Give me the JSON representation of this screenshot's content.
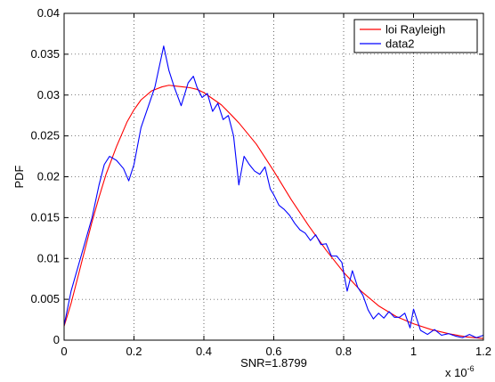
{
  "chart_data": {
    "type": "line",
    "title": "",
    "xlabel": "SNR=1.8799",
    "ylabel": "PDF",
    "x_exponent_label": "x 10",
    "x_exponent_power": "-6",
    "xlim": [
      0,
      1.2
    ],
    "ylim": [
      0,
      0.04
    ],
    "xticks": [
      "0",
      "0.2",
      "0.4",
      "0.6",
      "0.8",
      "1",
      "1.2"
    ],
    "yticks": [
      "0",
      "0.005",
      "0.01",
      "0.015",
      "0.02",
      "0.025",
      "0.03",
      "0.035",
      "0.04"
    ],
    "grid": true,
    "legend_position": "top-right",
    "series": [
      {
        "name": "loi Rayleigh",
        "color": "#ff0000",
        "x": [
          0.0,
          0.02,
          0.05,
          0.08,
          0.1,
          0.12,
          0.15,
          0.18,
          0.2,
          0.22,
          0.25,
          0.28,
          0.3,
          0.32,
          0.34,
          0.36,
          0.38,
          0.4,
          0.42,
          0.45,
          0.48,
          0.5,
          0.55,
          0.6,
          0.65,
          0.7,
          0.75,
          0.8,
          0.85,
          0.9,
          0.95,
          1.0,
          1.05,
          1.1,
          1.15,
          1.2
        ],
        "values": [
          0.0017,
          0.0045,
          0.0095,
          0.0145,
          0.0175,
          0.0203,
          0.0237,
          0.0267,
          0.0282,
          0.0294,
          0.0305,
          0.031,
          0.0312,
          0.0311,
          0.031,
          0.0309,
          0.0307,
          0.0303,
          0.0297,
          0.0288,
          0.0275,
          0.0266,
          0.024,
          0.0207,
          0.0172,
          0.014,
          0.011,
          0.0083,
          0.006,
          0.0042,
          0.0029,
          0.002,
          0.0013,
          0.0008,
          0.0004,
          0.0002
        ]
      },
      {
        "name": "data2",
        "color": "#0000ff",
        "x": [
          0.0,
          0.02,
          0.05,
          0.08,
          0.1,
          0.115,
          0.13,
          0.15,
          0.17,
          0.185,
          0.2,
          0.22,
          0.24,
          0.26,
          0.285,
          0.3,
          0.315,
          0.335,
          0.355,
          0.37,
          0.38,
          0.395,
          0.41,
          0.425,
          0.44,
          0.455,
          0.47,
          0.485,
          0.5,
          0.515,
          0.53,
          0.545,
          0.56,
          0.575,
          0.59,
          0.6,
          0.615,
          0.63,
          0.645,
          0.66,
          0.675,
          0.69,
          0.705,
          0.72,
          0.735,
          0.75,
          0.765,
          0.78,
          0.795,
          0.81,
          0.825,
          0.84,
          0.855,
          0.87,
          0.885,
          0.9,
          0.915,
          0.93,
          0.945,
          0.96,
          0.975,
          0.99,
          1.0,
          1.02,
          1.04,
          1.06,
          1.08,
          1.1,
          1.12,
          1.14,
          1.16,
          1.18,
          1.2
        ],
        "values": [
          0.0018,
          0.006,
          0.0105,
          0.015,
          0.019,
          0.0215,
          0.0225,
          0.022,
          0.021,
          0.0195,
          0.0215,
          0.026,
          0.0285,
          0.031,
          0.036,
          0.033,
          0.031,
          0.0287,
          0.0315,
          0.0323,
          0.031,
          0.0297,
          0.0302,
          0.028,
          0.029,
          0.027,
          0.0275,
          0.025,
          0.019,
          0.0225,
          0.0215,
          0.0207,
          0.0203,
          0.0212,
          0.0185,
          0.0178,
          0.0165,
          0.016,
          0.0153,
          0.0143,
          0.0135,
          0.0131,
          0.0122,
          0.0129,
          0.0117,
          0.0118,
          0.0103,
          0.0103,
          0.0095,
          0.006,
          0.0085,
          0.0065,
          0.0055,
          0.0037,
          0.0026,
          0.0033,
          0.0027,
          0.0035,
          0.0028,
          0.0028,
          0.0033,
          0.0015,
          0.0038,
          0.0012,
          0.0007,
          0.0013,
          0.0006,
          0.0008,
          0.0005,
          0.0003,
          0.0007,
          0.0003,
          0.0006
        ]
      }
    ]
  }
}
